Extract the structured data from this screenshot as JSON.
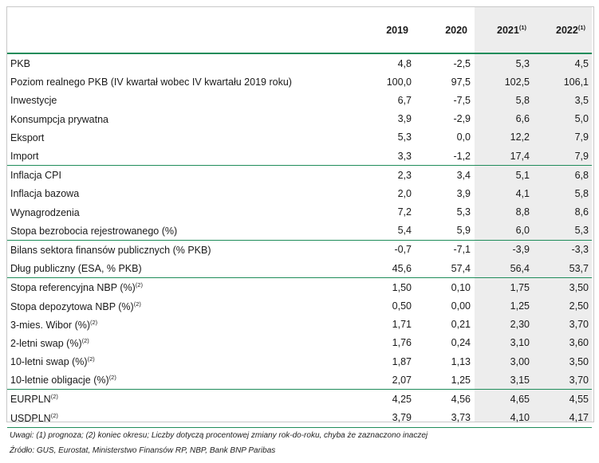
{
  "header": {
    "years": [
      {
        "label": "2019",
        "note": ""
      },
      {
        "label": "2020",
        "note": ""
      },
      {
        "label": "2021",
        "note": "(1)"
      },
      {
        "label": "2022",
        "note": "(1)"
      }
    ]
  },
  "rows": [
    {
      "group_start": true,
      "label": "PKB",
      "note": "",
      "values": [
        "4,8",
        "-2,5",
        "5,3",
        "4,5"
      ]
    },
    {
      "group_start": false,
      "label": "Poziom realnego PKB (IV kwartał wobec IV kwartału 2019 roku)",
      "note": "",
      "values": [
        "100,0",
        "97,5",
        "102,5",
        "106,1"
      ]
    },
    {
      "group_start": false,
      "label": "Inwestycje",
      "note": "",
      "values": [
        "6,7",
        "-7,5",
        "5,8",
        "3,5"
      ]
    },
    {
      "group_start": false,
      "label": "Konsumpcja prywatna",
      "note": "",
      "values": [
        "3,9",
        "-2,9",
        "6,6",
        "5,0"
      ]
    },
    {
      "group_start": false,
      "label": "Eksport",
      "note": "",
      "values": [
        "5,3",
        "0,0",
        "12,2",
        "7,9"
      ]
    },
    {
      "group_start": false,
      "label": "Import",
      "note": "",
      "values": [
        "3,3",
        "-1,2",
        "17,4",
        "7,9"
      ]
    },
    {
      "group_start": true,
      "label": "Inflacja CPI",
      "note": "",
      "values": [
        "2,3",
        "3,4",
        "5,1",
        "6,8"
      ]
    },
    {
      "group_start": false,
      "label": "Inflacja bazowa",
      "note": "",
      "values": [
        "2,0",
        "3,9",
        "4,1",
        "5,8"
      ]
    },
    {
      "group_start": false,
      "label": "Wynagrodzenia",
      "note": "",
      "values": [
        "7,2",
        "5,3",
        "8,8",
        "8,6"
      ]
    },
    {
      "group_start": false,
      "label": "Stopa bezrobocia rejestrowanego (%)",
      "note": "",
      "values": [
        "5,4",
        "5,9",
        "6,0",
        "5,3"
      ]
    },
    {
      "group_start": true,
      "label": "Bilans sektora finansów publicznych (% PKB)",
      "note": "",
      "values": [
        "-0,7",
        "-7,1",
        "-3,9",
        "-3,3"
      ]
    },
    {
      "group_start": false,
      "label": "Dług publiczny (ESA, % PKB)",
      "note": "",
      "values": [
        "45,6",
        "57,4",
        "56,4",
        "53,7"
      ]
    },
    {
      "group_start": true,
      "label": "Stopa referencyjna NBP (%)",
      "note": "(2)",
      "values": [
        "1,50",
        "0,10",
        "1,75",
        "3,50"
      ]
    },
    {
      "group_start": false,
      "label": "Stopa depozytowa NBP (%)",
      "note": "(2)",
      "values": [
        "0,50",
        "0,00",
        "1,25",
        "2,50"
      ]
    },
    {
      "group_start": false,
      "label": "3-mies. Wibor (%)",
      "note": "(2)",
      "values": [
        "1,71",
        "0,21",
        "2,30",
        "3,70"
      ]
    },
    {
      "group_start": false,
      "label": "2-letni swap (%)",
      "note": "(2)",
      "values": [
        "1,76",
        "0,24",
        "3,10",
        "3,60"
      ]
    },
    {
      "group_start": false,
      "label": "10-letni swap (%)",
      "note": "(2)",
      "values": [
        "1,87",
        "1,13",
        "3,00",
        "3,50"
      ]
    },
    {
      "group_start": false,
      "label": "10-letnie obligacje (%)",
      "note": "(2)",
      "values": [
        "2,07",
        "1,25",
        "3,15",
        "3,70"
      ]
    },
    {
      "group_start": true,
      "label": "EURPLN",
      "note": "(2)",
      "values": [
        "4,25",
        "4,56",
        "4,65",
        "4,55"
      ]
    },
    {
      "group_start": false,
      "label": "USDPLN",
      "note": "(2)",
      "values": [
        "3,79",
        "3,73",
        "4,10",
        "4,17"
      ]
    }
  ],
  "footnotes": {
    "notes": "Uwagi: (1) prognoza; (2) koniec okresu; Liczby dotyczą procentowej zmiany rok-do-roku, chyba że zaznaczono inaczej",
    "source": "Źródło: GUS, Eurostat, Ministerstwo Finansów RP, NBP, Bank BNP Paribas"
  },
  "colors": {
    "rule": "#1f8c5a",
    "forecast_shade": "#ededed"
  }
}
